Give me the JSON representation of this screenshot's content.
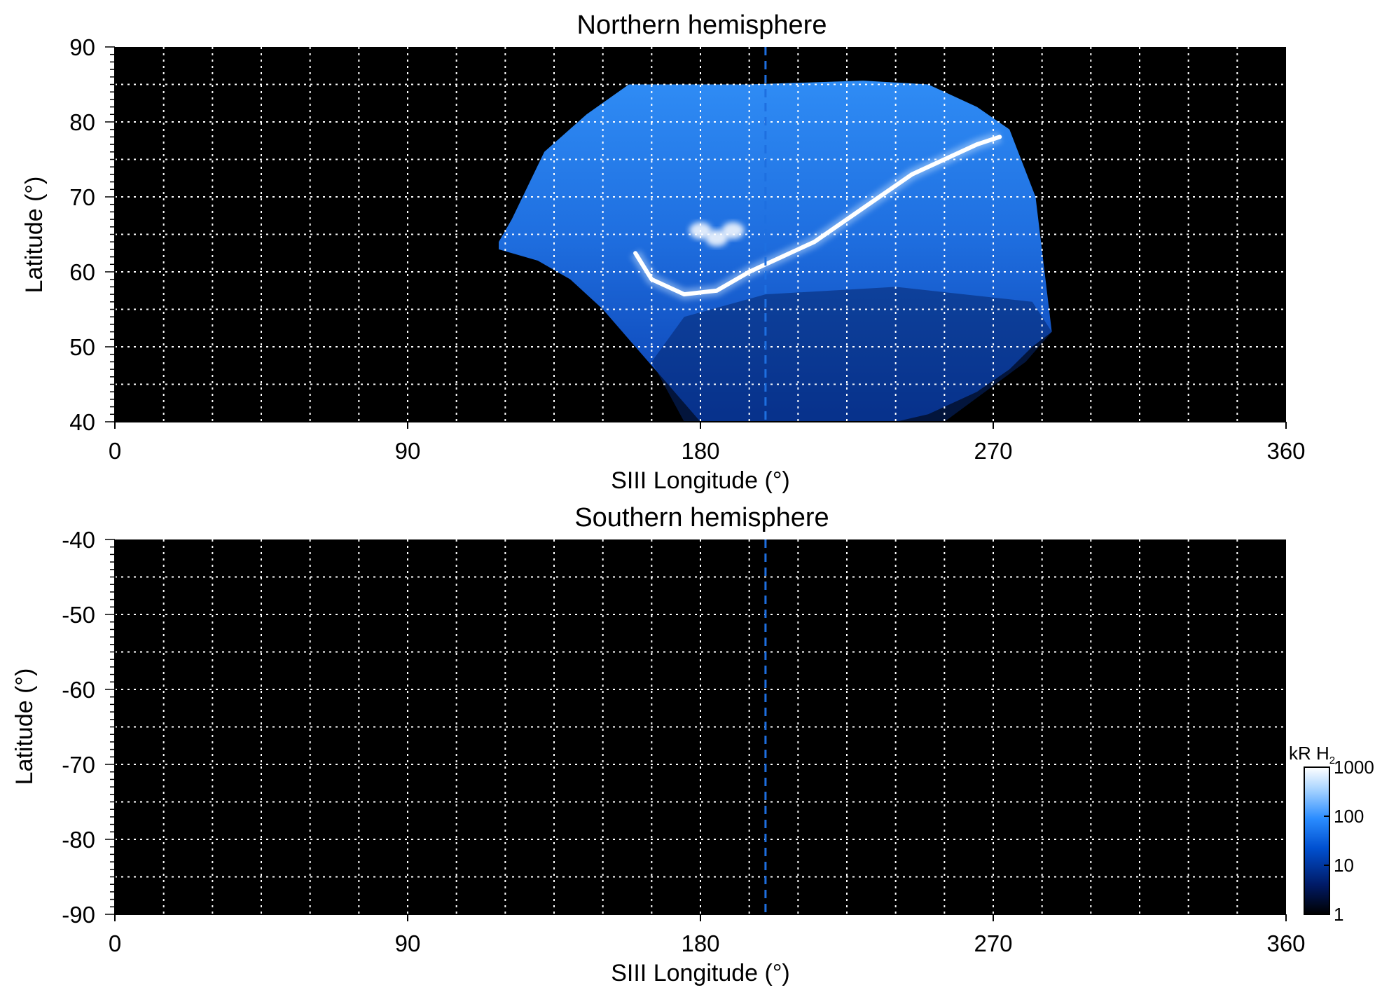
{
  "chart_data": [
    {
      "type": "heatmap",
      "title": "Northern hemisphere",
      "xlabel": "SIII Longitude (°)",
      "ylabel": "Latitude (°)",
      "xlim": [
        0,
        360
      ],
      "ylim": [
        40,
        90
      ],
      "xticks": [
        0,
        90,
        180,
        270,
        360
      ],
      "yticks": [
        40,
        50,
        60,
        70,
        80,
        90
      ],
      "grid": true,
      "reference_longitude": 200,
      "emission_region": {
        "longitude_range": [
          118,
          288
        ],
        "latitude_range": [
          40,
          86
        ]
      },
      "main_oval": [
        {
          "lon": 160,
          "lat": 62.5
        },
        {
          "lon": 165,
          "lat": 59
        },
        {
          "lon": 175,
          "lat": 57
        },
        {
          "lon": 185,
          "lat": 57.5
        },
        {
          "lon": 195,
          "lat": 60
        },
        {
          "lon": 205,
          "lat": 62
        },
        {
          "lon": 215,
          "lat": 64
        },
        {
          "lon": 225,
          "lat": 67
        },
        {
          "lon": 235,
          "lat": 70
        },
        {
          "lon": 245,
          "lat": 73
        },
        {
          "lon": 255,
          "lat": 75
        },
        {
          "lon": 265,
          "lat": 77
        },
        {
          "lon": 272,
          "lat": 78
        }
      ],
      "bright_features": [
        {
          "lon": 180,
          "lat": 65.5
        },
        {
          "lon": 185,
          "lat": 64.5
        },
        {
          "lon": 190,
          "lat": 65.5
        }
      ]
    },
    {
      "type": "heatmap",
      "title": "Southern hemisphere",
      "xlabel": "SIII Longitude (°)",
      "ylabel": "Latitude (°)",
      "xlim": [
        0,
        360
      ],
      "ylim": [
        -90,
        -40
      ],
      "xticks": [
        0,
        90,
        180,
        270,
        360
      ],
      "yticks": [
        -40,
        -50,
        -60,
        -70,
        -80,
        -90
      ],
      "grid": true,
      "reference_longitude": 200
    }
  ],
  "colorbar": {
    "label_main": "kR H",
    "label_sub": "2",
    "scale": "log",
    "range": [
      1,
      1000
    ],
    "tick_values": [
      1,
      10,
      100,
      1000
    ],
    "tick_labels": [
      "1",
      "10",
      "100",
      "1000"
    ],
    "colors": [
      "#000000",
      "#001a66",
      "#0050d0",
      "#2a8cff",
      "#a8d4ff",
      "#ffffff"
    ]
  }
}
